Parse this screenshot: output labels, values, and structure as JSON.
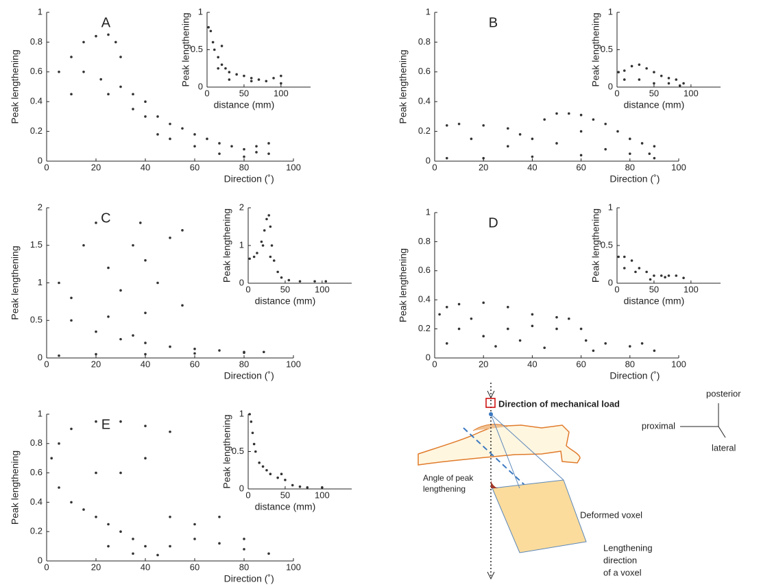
{
  "chart_data": [
    {
      "type": "scatter",
      "title": "A",
      "xlabel": "Direction (˚)",
      "ylabel": "Peak lengthening",
      "color": "#333333",
      "xlim": [
        0,
        100
      ],
      "ylim": [
        0,
        1
      ],
      "xticks": [
        0,
        20,
        40,
        60,
        80,
        100
      ],
      "yticks": [
        0,
        0.2,
        0.4,
        0.6,
        0.8,
        1
      ],
      "x": [
        5,
        10,
        15,
        20,
        25,
        28,
        30,
        22,
        25,
        30,
        35,
        35,
        40,
        45,
        50,
        55,
        60,
        65,
        70,
        75,
        80,
        85,
        90,
        90,
        80,
        70,
        60,
        50,
        40,
        15,
        10,
        45,
        85
      ],
      "values": [
        0.6,
        0.7,
        0.8,
        0.84,
        0.85,
        0.8,
        0.7,
        0.55,
        0.45,
        0.5,
        0.45,
        0.35,
        0.3,
        0.3,
        0.25,
        0.22,
        0.18,
        0.15,
        0.12,
        0.1,
        0.08,
        0.06,
        0.05,
        0.12,
        0.03,
        0.05,
        0.1,
        0.15,
        0.4,
        0.6,
        0.45,
        0.18,
        0.1
      ]
    },
    {
      "type": "scatter",
      "xlabel": "distance (mm)",
      "ylabel": "Peak lengthening",
      "color": "#333333",
      "xlim": [
        0,
        140
      ],
      "ylim": [
        0,
        1
      ],
      "xticks": [
        0,
        50,
        100
      ],
      "yticks": [
        0,
        0.5,
        1
      ],
      "x": [
        2,
        5,
        8,
        10,
        15,
        20,
        25,
        30,
        40,
        50,
        60,
        70,
        80,
        90,
        100,
        100,
        60,
        30,
        15,
        20
      ],
      "values": [
        0.8,
        0.75,
        0.6,
        0.5,
        0.4,
        0.3,
        0.25,
        0.2,
        0.17,
        0.15,
        0.12,
        0.1,
        0.08,
        0.12,
        0.15,
        0.05,
        0.08,
        0.1,
        0.25,
        0.55
      ]
    },
    {
      "type": "scatter",
      "title": "B",
      "xlabel": "Direction (˚)",
      "ylabel": "Peak lengthening",
      "color": "#333333",
      "xlim": [
        0,
        100
      ],
      "ylim": [
        0,
        1
      ],
      "xticks": [
        0,
        20,
        40,
        60,
        80,
        100
      ],
      "yticks": [
        0,
        0.2,
        0.4,
        0.6,
        0.8,
        1
      ],
      "x": [
        5,
        10,
        20,
        30,
        35,
        40,
        45,
        50,
        55,
        60,
        65,
        70,
        75,
        80,
        85,
        90,
        5,
        20,
        40,
        60,
        80,
        90,
        30,
        50,
        70,
        15,
        60,
        88
      ],
      "values": [
        0.24,
        0.25,
        0.24,
        0.22,
        0.18,
        0.15,
        0.28,
        0.32,
        0.32,
        0.31,
        0.28,
        0.25,
        0.2,
        0.15,
        0.12,
        0.1,
        0.02,
        0.02,
        0.03,
        0.04,
        0.05,
        0.02,
        0.1,
        0.12,
        0.08,
        0.15,
        0.2,
        0.05
      ]
    },
    {
      "type": "scatter",
      "xlabel": "distance (mm)",
      "ylabel": "Peak lengthening",
      "color": "#333333",
      "xlim": [
        0,
        140
      ],
      "ylim": [
        0,
        1
      ],
      "xticks": [
        0,
        50,
        100
      ],
      "yticks": [
        0,
        0.5,
        1
      ],
      "x": [
        2,
        10,
        20,
        30,
        40,
        50,
        60,
        70,
        80,
        90,
        10,
        30,
        50,
        70,
        85
      ],
      "values": [
        0.2,
        0.22,
        0.28,
        0.3,
        0.25,
        0.2,
        0.15,
        0.12,
        0.1,
        0.05,
        0.1,
        0.1,
        0.05,
        0.05,
        0.02
      ]
    },
    {
      "type": "scatter",
      "title": "C",
      "xlabel": "Direction (˚)",
      "ylabel": "Peak lengthening",
      "color": "#333333",
      "xlim": [
        0,
        100
      ],
      "ylim": [
        0,
        2
      ],
      "xticks": [
        0,
        20,
        40,
        60,
        80,
        100
      ],
      "yticks": [
        0,
        0.5,
        1,
        1.5,
        2
      ],
      "x": [
        5,
        20,
        40,
        60,
        80,
        88,
        10,
        15,
        20,
        25,
        30,
        35,
        38,
        40,
        45,
        50,
        55,
        5,
        10,
        20,
        30,
        40,
        50,
        60,
        70,
        80,
        40,
        55,
        25,
        35
      ],
      "values": [
        0.03,
        0.05,
        0.05,
        0.06,
        0.07,
        0.08,
        0.8,
        1.5,
        1.8,
        1.2,
        0.9,
        1.5,
        1.8,
        1.3,
        1.0,
        1.6,
        1.7,
        1.0,
        0.5,
        0.35,
        0.25,
        0.2,
        0.15,
        0.12,
        0.1,
        0.08,
        0.6,
        0.7,
        0.55,
        0.3
      ]
    },
    {
      "type": "scatter",
      "xlabel": "distance (mm)",
      "ylabel": "Peak lengthening",
      "color": "#333333",
      "xlim": [
        0,
        140
      ],
      "ylim": [
        0,
        2
      ],
      "xticks": [
        0,
        50,
        100
      ],
      "yticks": [
        0,
        1,
        2
      ],
      "x": [
        2,
        8,
        12,
        18,
        22,
        25,
        28,
        30,
        32,
        35,
        40,
        45,
        55,
        70,
        90,
        105,
        20,
        30
      ],
      "values": [
        0.65,
        0.7,
        0.8,
        1.1,
        1.4,
        1.7,
        1.8,
        1.5,
        1.0,
        0.6,
        0.3,
        0.15,
        0.08,
        0.05,
        0.05,
        0.05,
        1.0,
        0.7
      ]
    },
    {
      "type": "scatter",
      "title": "D",
      "xlabel": "Direction (˚)",
      "ylabel": "Peak lengthening",
      "color": "#333333",
      "xlim": [
        0,
        100
      ],
      "ylim": [
        0,
        1
      ],
      "xticks": [
        0,
        20,
        40,
        60,
        80,
        100
      ],
      "yticks": [
        0,
        0.2,
        0.4,
        0.6,
        0.8,
        1
      ],
      "x": [
        2,
        5,
        10,
        20,
        30,
        40,
        50,
        55,
        60,
        62,
        70,
        80,
        90,
        10,
        20,
        30,
        40,
        50,
        5,
        25,
        45,
        65,
        85,
        35,
        15
      ],
      "values": [
        0.3,
        0.35,
        0.37,
        0.38,
        0.35,
        0.3,
        0.28,
        0.27,
        0.2,
        0.12,
        0.1,
        0.08,
        0.05,
        0.2,
        0.15,
        0.2,
        0.22,
        0.2,
        0.1,
        0.08,
        0.07,
        0.05,
        0.1,
        0.12,
        0.27
      ]
    },
    {
      "type": "scatter",
      "xlabel": "distance (mm)",
      "ylabel": "Peak lengthening",
      "color": "#333333",
      "xlim": [
        0,
        140
      ],
      "ylim": [
        0,
        1
      ],
      "xticks": [
        0,
        50,
        100
      ],
      "yticks": [
        0,
        0.5,
        1
      ],
      "x": [
        2,
        10,
        20,
        30,
        40,
        50,
        60,
        70,
        80,
        90,
        10,
        25,
        45,
        65
      ],
      "values": [
        0.35,
        0.35,
        0.3,
        0.2,
        0.15,
        0.1,
        0.1,
        0.1,
        0.1,
        0.07,
        0.2,
        0.15,
        0.05,
        0.08
      ]
    },
    {
      "type": "scatter",
      "title": "E",
      "xlabel": "Direction (˚)",
      "ylabel": "Peak lengthening",
      "color": "#333333",
      "xlim": [
        0,
        100
      ],
      "ylim": [
        0,
        1
      ],
      "xticks": [
        0,
        20,
        40,
        60,
        80,
        100
      ],
      "yticks": [
        0,
        0.2,
        0.4,
        0.6,
        0.8,
        1
      ],
      "x": [
        2,
        5,
        10,
        20,
        30,
        40,
        50,
        5,
        10,
        15,
        20,
        25,
        30,
        35,
        40,
        50,
        60,
        70,
        80,
        90,
        35,
        45,
        30,
        20,
        40,
        60,
        50,
        70,
        80,
        25
      ],
      "values": [
        0.7,
        0.8,
        0.9,
        0.95,
        0.95,
        0.92,
        0.88,
        0.5,
        0.4,
        0.35,
        0.3,
        0.25,
        0.2,
        0.15,
        0.1,
        0.1,
        0.15,
        0.12,
        0.08,
        0.05,
        0.05,
        0.04,
        0.6,
        0.6,
        0.7,
        0.25,
        0.3,
        0.3,
        0.15,
        0.1
      ]
    },
    {
      "type": "scatter",
      "xlabel": "distance (mm)",
      "ylabel": "Peak lengthening",
      "color": "#333333",
      "xlim": [
        0,
        140
      ],
      "ylim": [
        0,
        1
      ],
      "xticks": [
        0,
        50,
        100
      ],
      "yticks": [
        0,
        0.5,
        1
      ],
      "x": [
        2,
        4,
        6,
        8,
        10,
        15,
        20,
        25,
        30,
        40,
        50,
        60,
        70,
        80,
        100,
        45
      ],
      "values": [
        1.0,
        0.9,
        0.75,
        0.6,
        0.5,
        0.35,
        0.3,
        0.25,
        0.2,
        0.15,
        0.12,
        0.05,
        0.03,
        0.02,
        0.02,
        0.2
      ]
    }
  ],
  "diagram": {
    "load_label": "Direction of mechanical load",
    "orientation": {
      "posterior": "posterior",
      "proximal": "proximal",
      "lateral": "lateral"
    },
    "angle_label": [
      "Angle of peak",
      "lengthening"
    ],
    "voxel_label": "Deformed voxel",
    "direction_label": [
      "Lengthening",
      "direction",
      "of a voxel"
    ]
  }
}
